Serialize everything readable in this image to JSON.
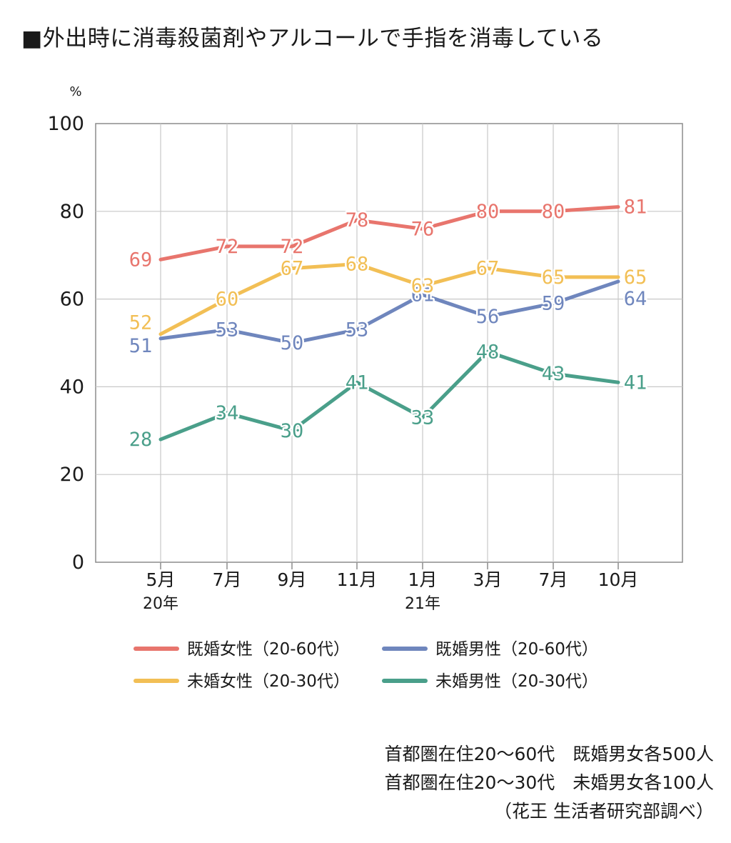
{
  "title": "■外出時に消毒殺菌剤やアルコールで手指を消毒している",
  "chart_data": {
    "type": "line",
    "title": "■外出時に消毒殺菌剤やアルコールで手指を消毒している",
    "y_unit": "%",
    "ylim": [
      0,
      100
    ],
    "y_ticks": [
      "0",
      "20",
      "40",
      "60",
      "80",
      "100"
    ],
    "y_tick_values": [
      0,
      20,
      40,
      60,
      80,
      100
    ],
    "categories": [
      "5月",
      "7月",
      "9月",
      "11月",
      "1月",
      "3月",
      "7月",
      "10月"
    ],
    "category_sublabels": [
      "20年",
      "",
      "",
      "",
      "21年",
      "",
      "",
      ""
    ],
    "grid": true,
    "legend_position": "bottom",
    "series": [
      {
        "name": "既婚女性（20-60代）",
        "color": "#e8756d",
        "values": [
          69,
          72,
          72,
          78,
          76,
          80,
          80,
          81
        ]
      },
      {
        "name": "既婚男性（20-60代）",
        "color": "#6f86bd",
        "values": [
          51,
          53,
          50,
          53,
          61,
          56,
          59,
          64
        ]
      },
      {
        "name": "未婚女性（20-30代）",
        "color": "#f2bf55",
        "values": [
          52,
          60,
          67,
          68,
          63,
          67,
          65,
          65
        ]
      },
      {
        "name": "未婚男性（20-30代）",
        "color": "#4a9f8a",
        "values": [
          28,
          34,
          30,
          41,
          33,
          48,
          43,
          41
        ]
      }
    ]
  },
  "notes": [
    "首都圏在住20〜60代　既婚男女各500人",
    "首都圏在住20〜30代　未婚男女各100人",
    "（花王 生活者研究部調べ）"
  ]
}
